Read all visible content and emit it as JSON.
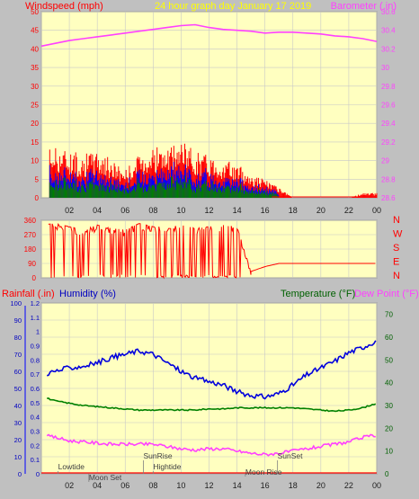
{
  "colors": {
    "background": "#c0c0c0",
    "plot_bg": "#ffffc0",
    "grid": "#c8c8c8",
    "windspeed": "#ff0000",
    "windspeed_avg": "#0000ff",
    "windspeed_low": "#008000",
    "barometer": "#ff40ff",
    "direction": "#ff0000",
    "humidity": "#0000ff",
    "temperature": "#008000",
    "dewpoint": "#ff40ff",
    "rainfall": "#ff0000",
    "title": "#ffff00",
    "tide_text": "#404040"
  },
  "header": {
    "left_label": "Windspeed (mph)",
    "title": "24 hour graph day   January 17 2019",
    "right_label": "Barometer (.in)"
  },
  "bottom_header": {
    "rain_label": "Rainfall (.in)",
    "humidity_label": "Humidity (%)",
    "temp_label": "Temperature (°F)",
    "dew_label": "Dew Point (°F)"
  },
  "x_ticks": [
    "02",
    "04",
    "06",
    "08",
    "10",
    "12",
    "14",
    "16",
    "18",
    "20",
    "22",
    "00"
  ],
  "compass": [
    "N",
    "W",
    "S",
    "E",
    "N"
  ],
  "events": [
    {
      "label": "Lowtide",
      "hour": 1.2
    },
    {
      "label": "Moon Set",
      "hour": 3.4
    },
    {
      "label": "SunRise",
      "hour": 7.3
    },
    {
      "label": "Hightide",
      "hour": 8.0
    },
    {
      "label": "Moon Rise",
      "hour": 14.6
    },
    {
      "label": "SunSet",
      "hour": 16.9
    }
  ],
  "chart_data": [
    {
      "type": "line",
      "xlabel": "",
      "x_range_hours": [
        0,
        24
      ],
      "left_axis": {
        "label": "Windspeed (mph)",
        "range": [
          0,
          50
        ],
        "ticks": [
          "50",
          "45",
          "40",
          "35",
          "30",
          "25",
          "20",
          "15",
          "10",
          "5",
          "0"
        ]
      },
      "right_axis": {
        "label": "Barometer (.in)",
        "range": [
          28.6,
          30.6
        ],
        "ticks": [
          "30.6",
          "30.4",
          "30.2",
          "30",
          "29.8",
          "29.6",
          "29.4",
          "29.2",
          "29",
          "28.8",
          "28.6"
        ]
      },
      "series": [
        {
          "name": "Windspeed (mph)",
          "axis": "left",
          "x": [
            0,
            1,
            2,
            3,
            4,
            5,
            6,
            7,
            8,
            9,
            10,
            11,
            12,
            13,
            14,
            15,
            16,
            17,
            18,
            19,
            20,
            21,
            22,
            23,
            24
          ],
          "values": [
            10,
            11,
            10,
            9,
            10,
            8,
            6,
            9,
            11,
            10,
            12,
            10,
            9,
            8,
            7,
            5,
            4,
            2,
            0,
            0,
            0,
            0,
            0,
            1,
            1
          ]
        },
        {
          "name": "Barometer (.in)",
          "axis": "right",
          "x": [
            0,
            1,
            2,
            3,
            4,
            5,
            6,
            7,
            8,
            9,
            10,
            11,
            12,
            13,
            14,
            15,
            16,
            17,
            18,
            19,
            20,
            21,
            22,
            23,
            24
          ],
          "values": [
            30.23,
            30.26,
            30.29,
            30.31,
            30.33,
            30.35,
            30.37,
            30.39,
            30.41,
            30.43,
            30.45,
            30.46,
            30.43,
            30.41,
            30.4,
            30.39,
            30.37,
            30.38,
            30.38,
            30.37,
            30.36,
            30.34,
            30.33,
            30.31,
            30.28
          ]
        }
      ]
    },
    {
      "type": "line",
      "xlabel": "",
      "x_range_hours": [
        0,
        24
      ],
      "left_axis": {
        "label": "",
        "range": [
          0,
          360
        ],
        "ticks": [
          "360",
          "270",
          "180",
          "90",
          "0"
        ]
      },
      "series": [
        {
          "name": "",
          "x": [
            0,
            1,
            2,
            3,
            4,
            5,
            6,
            7,
            8,
            9,
            10,
            11,
            12,
            13,
            14,
            15,
            16,
            17,
            18,
            19,
            20,
            21,
            22,
            23,
            24
          ],
          "values": [
            330,
            340,
            320,
            300,
            330,
            310,
            300,
            340,
            320,
            320,
            330,
            310,
            320,
            330,
            320,
            40,
            70,
            90,
            90,
            90,
            90,
            90,
            90,
            90,
            90
          ]
        }
      ]
    },
    {
      "type": "line",
      "xlabel": "",
      "x_range_hours": [
        0,
        24
      ],
      "left_axis": {
        "label": "Rainfall (.in)",
        "range": [
          0,
          1.2
        ],
        "ticks": [
          "1.2",
          "1.1",
          "1",
          "0.9",
          "0.8",
          "0.7",
          "0.6",
          "0.5",
          "0.4",
          "0.3",
          "0.2",
          "0.1",
          "0"
        ]
      },
      "left_axis2": {
        "label": "Humidity (%)",
        "range": [
          0,
          100
        ],
        "ticks": [
          "100",
          "90",
          "80",
          "70",
          "60",
          "50",
          "40",
          "30",
          "20",
          "10",
          "0"
        ]
      },
      "right_axis": {
        "label": "Temperature (°F)",
        "range": [
          0,
          75
        ],
        "ticks": [
          "70",
          "60",
          "50",
          "40",
          "30",
          "20",
          "10",
          "0"
        ]
      },
      "series": [
        {
          "name": "Humidity (%)",
          "axis": "left2",
          "x": [
            0,
            1,
            2,
            3,
            4,
            5,
            6,
            7,
            8,
            9,
            10,
            11,
            12,
            13,
            14,
            15,
            16,
            17,
            18,
            19,
            20,
            21,
            22,
            23,
            24
          ],
          "values": [
            58,
            60,
            62,
            63,
            65,
            68,
            70,
            72,
            70,
            65,
            60,
            56,
            54,
            52,
            48,
            46,
            45,
            47,
            52,
            58,
            62,
            66,
            71,
            74,
            78
          ]
        },
        {
          "name": "Temperature (°F)",
          "axis": "right",
          "x": [
            0,
            1,
            2,
            3,
            4,
            5,
            6,
            7,
            8,
            9,
            10,
            11,
            12,
            13,
            14,
            15,
            16,
            17,
            18,
            19,
            20,
            21,
            22,
            23,
            24
          ],
          "values": [
            34,
            32,
            31,
            30,
            29.5,
            29,
            28.5,
            28,
            28,
            28,
            28,
            28,
            28.5,
            28.5,
            29,
            29,
            29,
            29,
            29,
            28.5,
            28,
            27.5,
            28,
            29,
            31
          ]
        },
        {
          "name": "Dew Point (°F)",
          "axis": "right",
          "x": [
            0,
            1,
            2,
            3,
            4,
            5,
            6,
            7,
            8,
            9,
            10,
            11,
            12,
            13,
            14,
            15,
            16,
            17,
            18,
            19,
            20,
            21,
            22,
            23,
            24
          ],
          "values": [
            17,
            16,
            14.5,
            14,
            13.5,
            13,
            13,
            13,
            13,
            12,
            11,
            10.5,
            11,
            11,
            10,
            9,
            8.5,
            9,
            10,
            11,
            12,
            13,
            14,
            16,
            17
          ]
        },
        {
          "name": "Rainfall (.in)",
          "axis": "left",
          "x": [
            0,
            24
          ],
          "values": [
            0,
            0
          ]
        }
      ]
    }
  ]
}
